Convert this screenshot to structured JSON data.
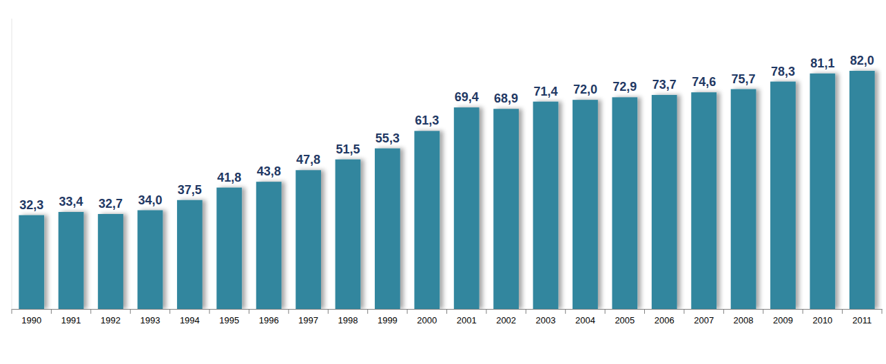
{
  "chart_data": {
    "type": "bar",
    "categories": [
      "1990",
      "1991",
      "1992",
      "1993",
      "1994",
      "1995",
      "1996",
      "1997",
      "1998",
      "1999",
      "2000",
      "2001",
      "2002",
      "2003",
      "2004",
      "2005",
      "2006",
      "2007",
      "2008",
      "2009",
      "2010",
      "2011"
    ],
    "values": [
      32.3,
      33.4,
      32.7,
      34.0,
      37.5,
      41.8,
      43.8,
      47.8,
      51.5,
      55.3,
      61.3,
      69.4,
      68.9,
      71.4,
      72.0,
      72.9,
      73.7,
      74.6,
      75.7,
      78.3,
      81.1,
      82.0
    ],
    "value_labels": [
      "32,3",
      "33,4",
      "32,7",
      "34,0",
      "37,5",
      "41,8",
      "43,8",
      "47,8",
      "51,5",
      "55,3",
      "61,3",
      "69,4",
      "68,9",
      "71,4",
      "72,0",
      "72,9",
      "73,7",
      "74,6",
      "75,7",
      "78,3",
      "81,1",
      "82,0"
    ],
    "color": "#31869e",
    "ylim": [
      0,
      100
    ],
    "data_labels": true,
    "tick_labels": "x",
    "grid": false
  }
}
